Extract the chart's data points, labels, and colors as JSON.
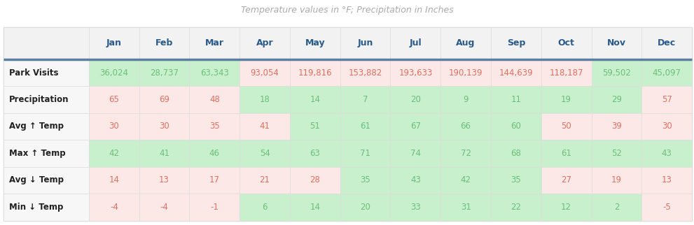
{
  "title": "Temperature values in °F; Precipitation in Inches",
  "months": [
    "Jan",
    "Feb",
    "Mar",
    "Apr",
    "May",
    "Jun",
    "Jul",
    "Aug",
    "Sep",
    "Oct",
    "Nov",
    "Dec"
  ],
  "row_labels": [
    "Park Visits",
    "Precipitation",
    "Avg ↑ Temp",
    "Max ↑ Temp",
    "Avg ↓ Temp",
    "Min ↓ Temp"
  ],
  "data": [
    [
      "36,024",
      "28,737",
      "63,343",
      "93,054",
      "119,816",
      "153,882",
      "193,633",
      "190,139",
      "144,639",
      "118,187",
      "59,502",
      "45,097"
    ],
    [
      "65",
      "69",
      "48",
      "18",
      "14",
      "7",
      "20",
      "9",
      "11",
      "19",
      "29",
      "57"
    ],
    [
      "30",
      "30",
      "35",
      "41",
      "51",
      "61",
      "67",
      "66",
      "60",
      "50",
      "39",
      "30"
    ],
    [
      "42",
      "41",
      "46",
      "54",
      "63",
      "71",
      "74",
      "72",
      "68",
      "61",
      "52",
      "43"
    ],
    [
      "14",
      "13",
      "17",
      "21",
      "28",
      "35",
      "43",
      "42",
      "35",
      "27",
      "19",
      "13"
    ],
    [
      "-4",
      "-4",
      "-1",
      "6",
      "14",
      "20",
      "33",
      "31",
      "22",
      "12",
      "2",
      "-5"
    ]
  ],
  "cell_colors": [
    [
      "#c8f0cd",
      "#c8f0cd",
      "#c8f0cd",
      "#fce8e6",
      "#fce8e6",
      "#fce8e6",
      "#fce8e6",
      "#fce8e6",
      "#fce8e6",
      "#fce8e6",
      "#c8f0cd",
      "#c8f0cd"
    ],
    [
      "#fce8e6",
      "#fce8e6",
      "#fce8e6",
      "#c8f0cd",
      "#c8f0cd",
      "#c8f0cd",
      "#c8f0cd",
      "#c8f0cd",
      "#c8f0cd",
      "#c8f0cd",
      "#c8f0cd",
      "#fce8e6"
    ],
    [
      "#fce8e6",
      "#fce8e6",
      "#fce8e6",
      "#fce8e6",
      "#c8f0cd",
      "#c8f0cd",
      "#c8f0cd",
      "#c8f0cd",
      "#c8f0cd",
      "#fce8e6",
      "#fce8e6",
      "#fce8e6"
    ],
    [
      "#c8f0cd",
      "#c8f0cd",
      "#c8f0cd",
      "#c8f0cd",
      "#c8f0cd",
      "#c8f0cd",
      "#c8f0cd",
      "#c8f0cd",
      "#c8f0cd",
      "#c8f0cd",
      "#c8f0cd",
      "#c8f0cd"
    ],
    [
      "#fce8e6",
      "#fce8e6",
      "#fce8e6",
      "#fce8e6",
      "#fce8e6",
      "#c8f0cd",
      "#c8f0cd",
      "#c8f0cd",
      "#c8f0cd",
      "#fce8e6",
      "#fce8e6",
      "#fce8e6"
    ],
    [
      "#fce8e6",
      "#fce8e6",
      "#fce8e6",
      "#c8f0cd",
      "#c8f0cd",
      "#c8f0cd",
      "#c8f0cd",
      "#c8f0cd",
      "#c8f0cd",
      "#c8f0cd",
      "#c8f0cd",
      "#fce8e6"
    ]
  ],
  "text_colors": [
    [
      "#6abf7a",
      "#6abf7a",
      "#6abf7a",
      "#e07060",
      "#e07060",
      "#e07060",
      "#e07060",
      "#e07060",
      "#e07060",
      "#e07060",
      "#6abf7a",
      "#6abf7a"
    ],
    [
      "#e07060",
      "#e07060",
      "#e07060",
      "#6abf7a",
      "#6abf7a",
      "#6abf7a",
      "#6abf7a",
      "#6abf7a",
      "#6abf7a",
      "#6abf7a",
      "#6abf7a",
      "#e07060"
    ],
    [
      "#e07060",
      "#e07060",
      "#e07060",
      "#e07060",
      "#6abf7a",
      "#6abf7a",
      "#6abf7a",
      "#6abf7a",
      "#6abf7a",
      "#e07060",
      "#e07060",
      "#e07060"
    ],
    [
      "#6abf7a",
      "#6abf7a",
      "#6abf7a",
      "#6abf7a",
      "#6abf7a",
      "#6abf7a",
      "#6abf7a",
      "#6abf7a",
      "#6abf7a",
      "#6abf7a",
      "#6abf7a",
      "#6abf7a"
    ],
    [
      "#e07060",
      "#e07060",
      "#e07060",
      "#e07060",
      "#e07060",
      "#6abf7a",
      "#6abf7a",
      "#6abf7a",
      "#6abf7a",
      "#e07060",
      "#e07060",
      "#e07060"
    ],
    [
      "#e07060",
      "#e07060",
      "#e07060",
      "#6abf7a",
      "#6abf7a",
      "#6abf7a",
      "#6abf7a",
      "#6abf7a",
      "#6abf7a",
      "#6abf7a",
      "#6abf7a",
      "#e07060"
    ]
  ],
  "header_bg": "#f2f2f2",
  "row_label_bg": "#f7f7f7",
  "title_color": "#aaaaaa",
  "header_text_color": "#2a5a8a",
  "row_label_text_color": "#222222",
  "separator_color": "#5a7fa0",
  "grid_color": "#dddddd",
  "col_widths_rel": [
    1.7,
    1.0,
    1.0,
    1.0,
    1.0,
    1.0,
    1.0,
    1.0,
    1.0,
    1.0,
    1.0,
    1.0,
    1.0
  ],
  "row_heights_rel": [
    1.2,
    1.0,
    1.0,
    1.0,
    1.0,
    1.0,
    1.0
  ]
}
